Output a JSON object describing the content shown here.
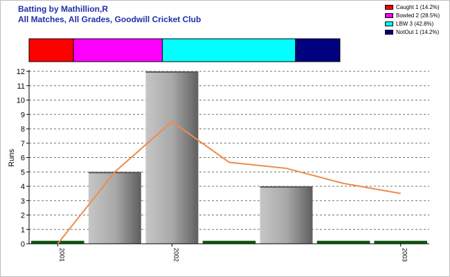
{
  "title": "Batting by Mathillion,R",
  "subtitle": "All Matches, All Grades, Goodwill Cricket Club",
  "legend": [
    {
      "label": "Caught 1 (14.2%)",
      "color": "#ff0000"
    },
    {
      "label": "Bowled 2 (28.5%)",
      "color": "#ff00ff"
    },
    {
      "label": "LBW 3 (42.8%)",
      "color": "#00ffff"
    },
    {
      "label": "NotOut 1 (14.2%)",
      "color": "#000080"
    }
  ],
  "chart_data": {
    "type": "bar",
    "ylabel": "Runs",
    "ylim": [
      0,
      12
    ],
    "yticks": [
      0,
      1,
      2,
      3,
      4,
      5,
      6,
      7,
      8,
      9,
      10,
      11,
      12
    ],
    "grid": true,
    "innings": [
      {
        "runs": 0,
        "dismissal": "NotOut"
      },
      {
        "runs": 5,
        "dismissal": "Bowled"
      },
      {
        "runs": 12,
        "dismissal": "Bowled"
      },
      {
        "runs": 0,
        "dismissal": "LBW"
      },
      {
        "runs": 4,
        "dismissal": "LBW"
      },
      {
        "runs": 0,
        "dismissal": "LBW"
      },
      {
        "runs": 0,
        "dismissal": "Caught"
      }
    ],
    "average_line": [
      0,
      5,
      8.5,
      5.67,
      5.25,
      4.2,
      3.5
    ],
    "x_tick_labels": [
      {
        "index": 0,
        "label": "2001"
      },
      {
        "index": 2,
        "label": "2002"
      },
      {
        "index": 6,
        "label": "2003"
      }
    ],
    "dismissal_breakdown": [
      {
        "name": "Caught",
        "count": 1,
        "percent": 14.2,
        "color": "#ff0000"
      },
      {
        "name": "Bowled",
        "count": 2,
        "percent": 28.5,
        "color": "#ff00ff"
      },
      {
        "name": "LBW",
        "count": 3,
        "percent": 42.8,
        "color": "#00ffff"
      },
      {
        "name": "NotOut",
        "count": 1,
        "percent": 14.2,
        "color": "#000080"
      }
    ],
    "colors": {
      "zero_bar": "#0b5d0b",
      "average_line": "#f08a4b"
    }
  }
}
